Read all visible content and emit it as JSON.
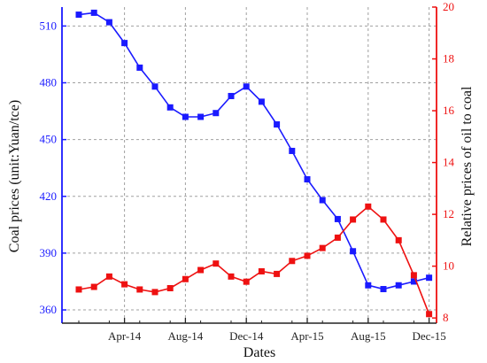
{
  "chart_data": {
    "type": "line",
    "xlabel": "Dates",
    "ylabel_left": "Coal prices (unit:Yuan/tce)",
    "ylabel_right": "Relative prices of oil to coal",
    "x_tick_labels": [
      "Apr-14",
      "Aug-14",
      "Dec-14",
      "Apr-15",
      "Aug-15",
      "Dec-15"
    ],
    "y_left_ticks": [
      "360",
      "390",
      "420",
      "450",
      "480",
      "510"
    ],
    "y_right_ticks": [
      "8",
      "10",
      "12",
      "14",
      "16",
      "18",
      "20"
    ],
    "y_left_lim": [
      353,
      520
    ],
    "y_right_lim": [
      7.8,
      20
    ],
    "grid": true,
    "x": [
      "Jan-14",
      "Feb-14",
      "Mar-14",
      "Apr-14",
      "May-14",
      "Jun-14",
      "Jul-14",
      "Aug-14",
      "Sep-14",
      "Oct-14",
      "Nov-14",
      "Dec-14",
      "Jan-15",
      "Feb-15",
      "Mar-15",
      "Apr-15",
      "May-15",
      "Jun-15",
      "Jul-15",
      "Aug-15",
      "Sep-15",
      "Oct-15",
      "Nov-15",
      "Dec-15"
    ],
    "series": [
      {
        "axis": "left",
        "color": "#1a1aff",
        "marker": "square",
        "values": [
          516,
          517,
          512,
          501,
          488,
          478,
          467,
          462,
          462,
          464,
          473,
          478,
          470,
          458,
          444,
          429,
          418,
          408,
          391,
          373,
          371,
          373,
          375,
          377
        ]
      },
      {
        "axis": "right",
        "color": "#ee1111",
        "marker": "square",
        "values": [
          9.1,
          9.2,
          9.6,
          9.3,
          9.1,
          9.0,
          9.15,
          9.5,
          9.85,
          10.1,
          9.6,
          9.4,
          9.8,
          9.7,
          10.2,
          10.4,
          10.7,
          11.1,
          11.8,
          12.3,
          11.8,
          11.0,
          9.65,
          8.15
        ]
      }
    ]
  }
}
